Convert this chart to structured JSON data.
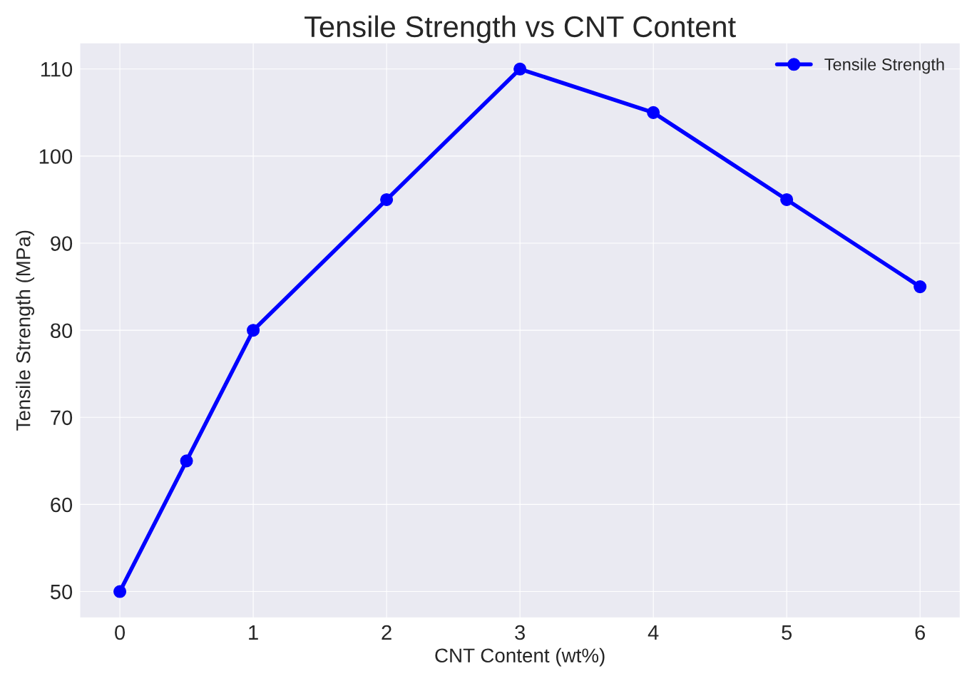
{
  "chart_data": {
    "type": "line",
    "title": "Tensile Strength vs CNT Content",
    "xlabel": "CNT Content (wt%)",
    "ylabel": "Tensile Strength (MPa)",
    "x": [
      0,
      0.5,
      1,
      2,
      3,
      4,
      5,
      6
    ],
    "series": [
      {
        "name": "Tensile Strength",
        "color": "#0000ff",
        "values": [
          50,
          65,
          80,
          95,
          110,
          105,
          95,
          85
        ]
      }
    ],
    "xlim": [
      -0.3,
      6.3
    ],
    "xticks": [
      0,
      1,
      2,
      3,
      4,
      5,
      6
    ],
    "ylim": [
      47,
      113
    ],
    "yticks": [
      50,
      60,
      70,
      80,
      90,
      100,
      110
    ],
    "grid": true,
    "legend": "top right",
    "marker": "circle",
    "line_style": "solid"
  }
}
